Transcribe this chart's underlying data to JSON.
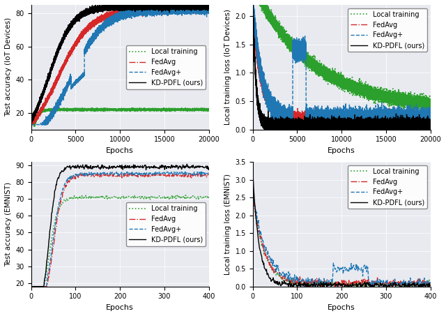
{
  "fig_width": 6.4,
  "fig_height": 4.53,
  "background_color": "#e8eaf0",
  "line_colors": {
    "local": "#2ca02c",
    "fedavg": "#d62728",
    "fedavgplus": "#1f77b4",
    "kdpdfl": "#000000"
  },
  "legend_labels": [
    "Local training",
    "FedAvg",
    "FedAvg+",
    "KD-PDFL (ours)"
  ],
  "subplots": [
    {
      "xlabel": "Epochs",
      "ylabel": "Test accuracy (IoT Devices)",
      "xlim": [
        0,
        20000
      ],
      "ylim": [
        10,
        85
      ],
      "xticks": [
        0,
        5000,
        10000,
        15000,
        20000
      ],
      "yticks": [
        20,
        40,
        60,
        80
      ],
      "legend_loc": "center right"
    },
    {
      "xlabel": "Epochs",
      "ylabel": "Local training loss (IoT Devices)",
      "xlim": [
        0,
        20000
      ],
      "ylim": [
        0.0,
        2.2
      ],
      "xticks": [
        0,
        5000,
        10000,
        15000,
        20000
      ],
      "yticks": [
        0.0,
        0.5,
        1.0,
        1.5,
        2.0
      ],
      "legend_loc": "upper right"
    },
    {
      "xlabel": "Epochs",
      "ylabel": "Test accuracy (EMNIST)",
      "xlim": [
        0,
        400
      ],
      "ylim": [
        18,
        92
      ],
      "xticks": [
        0,
        100,
        200,
        300,
        400
      ],
      "yticks": [
        20,
        30,
        40,
        50,
        60,
        70,
        80,
        90
      ],
      "legend_loc": "center right"
    },
    {
      "xlabel": "Epochs",
      "ylabel": "Local training loss (EMNIST)",
      "xlim": [
        0,
        400
      ],
      "ylim": [
        0.0,
        3.5
      ],
      "xticks": [
        0,
        100,
        200,
        300,
        400
      ],
      "yticks": [
        0.0,
        0.5,
        1.0,
        1.5,
        2.0,
        2.5,
        3.0,
        3.5
      ],
      "legend_loc": "upper right"
    }
  ]
}
